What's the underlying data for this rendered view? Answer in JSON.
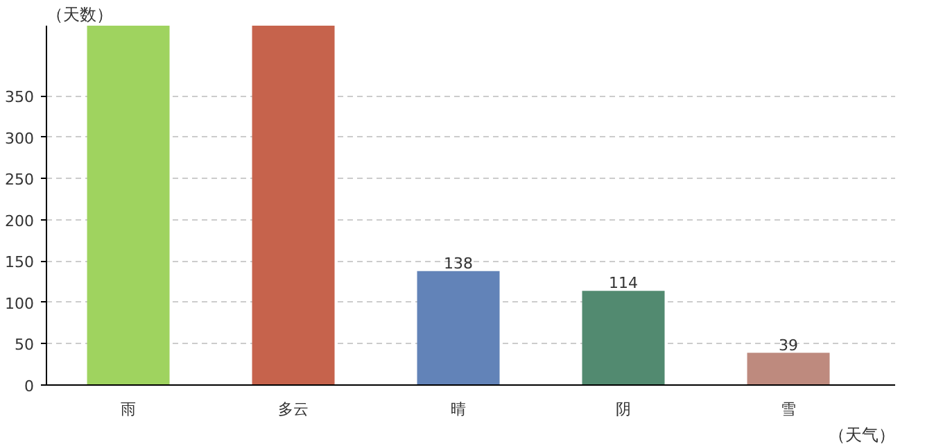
{
  "chart_data": {
    "type": "bar",
    "ylabel": "（天数）",
    "xlabel": "（天气）",
    "categories": [
      "雨",
      "多云",
      "晴",
      "阴",
      "雪"
    ],
    "values": [
      435,
      435,
      138,
      114,
      39
    ],
    "colors": [
      "#9fd35f",
      "#c6634c",
      "#6283b8",
      "#528a70",
      "#be8a7e"
    ],
    "value_labels": [
      null,
      null,
      "138",
      "114",
      "39"
    ],
    "ylim": [
      0,
      435
    ],
    "yticks": [
      0,
      50,
      100,
      150,
      200,
      250,
      300,
      350
    ],
    "grid": "y"
  }
}
